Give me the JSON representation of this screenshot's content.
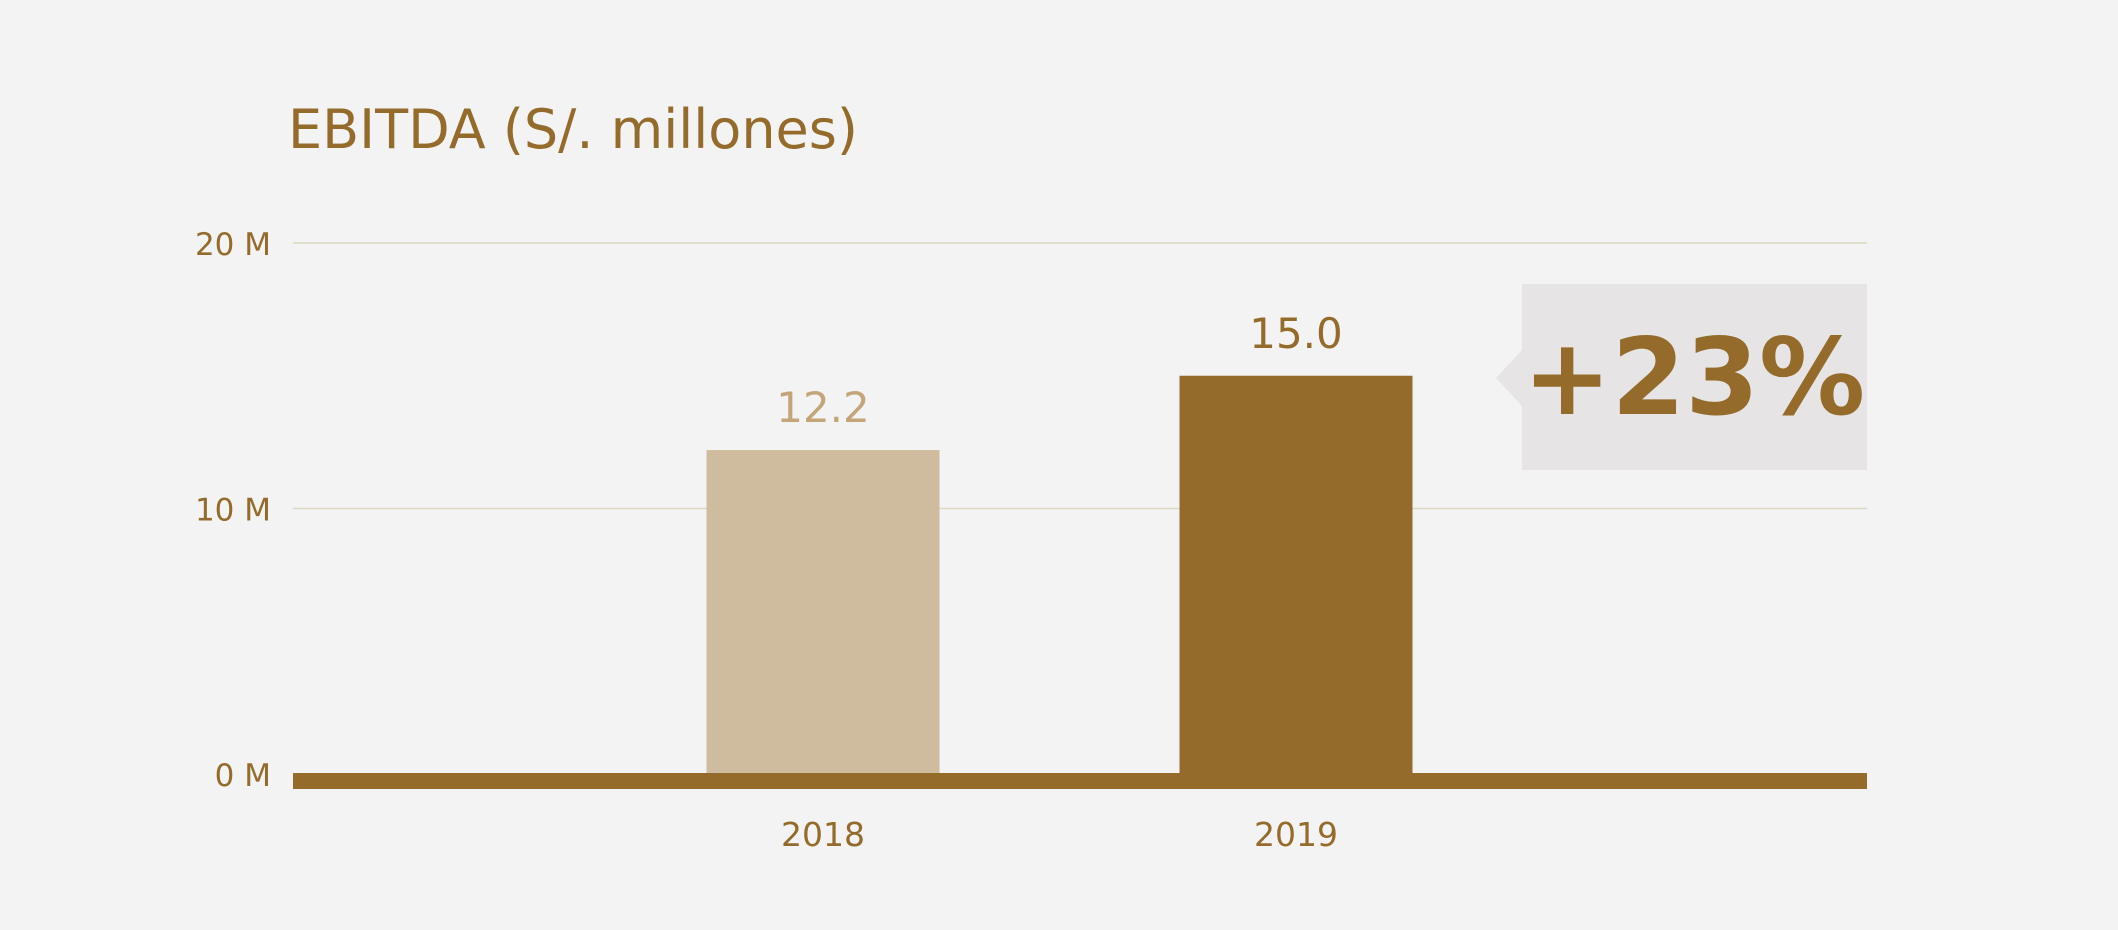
{
  "chart_data": {
    "type": "bar",
    "title": "EBITDA (S/. millones)",
    "categories": [
      "2018",
      "2019"
    ],
    "values": [
      12.2,
      15.0
    ],
    "data_labels": [
      "12.2",
      "15.0"
    ],
    "y_ticks": [
      {
        "value": 0,
        "label": "0 M"
      },
      {
        "value": 10,
        "label": "10 M"
      },
      {
        "value": 20,
        "label": "20 M"
      }
    ],
    "ylim": [
      0,
      20
    ],
    "grid": true,
    "callout": "+23%"
  },
  "colors": {
    "background": "#f3f3f3",
    "primary": "#946b2a",
    "bar_2018": "#cfbb9d",
    "label_2018": "#c4a57a",
    "bar_2019": "#946b2a",
    "gridline": "#ddd8c0",
    "callout_bg": "#e6e4e4"
  }
}
